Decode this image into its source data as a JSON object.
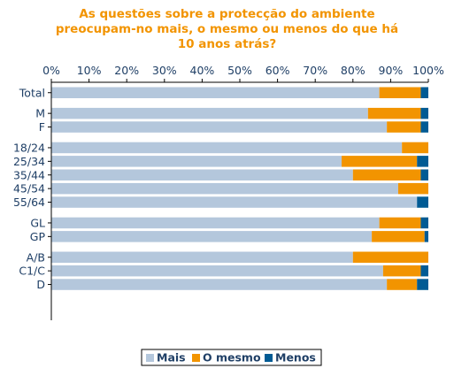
{
  "chart_data": {
    "type": "bar",
    "orientation": "horizontal",
    "stacked": true,
    "title_lines": [
      "As questões sobre a protecção do ambiente",
      "preocupam-no mais, o mesmo ou menos do que há",
      "10 anos atrás?"
    ],
    "xlim": [
      0,
      100
    ],
    "x_ticks": [
      "0%",
      "10%",
      "20%",
      "30%",
      "40%",
      "50%",
      "60%",
      "70%",
      "80%",
      "90%",
      "100%"
    ],
    "axis_position": "top",
    "grid": false,
    "legend_position": "bottom",
    "groups": [
      [
        "Total"
      ],
      [
        "M",
        "F"
      ],
      [
        "18/24",
        "25/34",
        "35/44",
        "45/54",
        "55/64"
      ],
      [
        "GL",
        "GP"
      ],
      [
        "A/B",
        "C1/C",
        "D"
      ]
    ],
    "categories": [
      "Total",
      "M",
      "F",
      "18/24",
      "25/34",
      "35/44",
      "45/54",
      "55/64",
      "GL",
      "GP",
      "A/B",
      "C1/C",
      "D"
    ],
    "series": [
      {
        "name": "Mais",
        "color": "#b4c7dc",
        "values": [
          87,
          84,
          89,
          93,
          77,
          80,
          92,
          97,
          87,
          85,
          80,
          88,
          89
        ]
      },
      {
        "name": "O mesmo",
        "color": "#f29400",
        "values": [
          11,
          14,
          9,
          7,
          20,
          18,
          8,
          0,
          11,
          14,
          20,
          10,
          8
        ]
      },
      {
        "name": "Menos",
        "color": "#005b94",
        "values": [
          2,
          2,
          2,
          0,
          3,
          2,
          0,
          3,
          2,
          1,
          0,
          2,
          3
        ]
      }
    ]
  }
}
